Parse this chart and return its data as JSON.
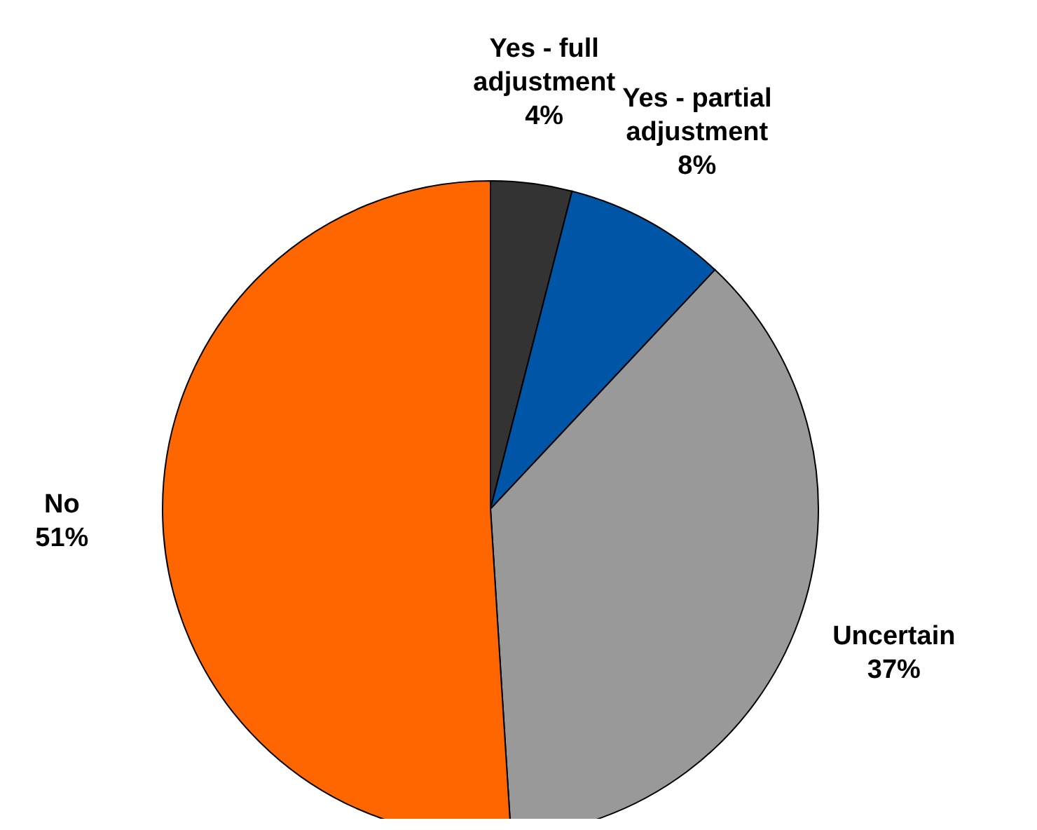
{
  "chart_data": {
    "type": "pie",
    "categories": [
      "Yes - full adjustment",
      "Yes - partial adjustment",
      "Uncertain",
      "No"
    ],
    "values": [
      4,
      8,
      37,
      51
    ],
    "value_labels": [
      "4%",
      "8%",
      "37%",
      "51%"
    ],
    "colors": [
      "#333333",
      "#0056a6",
      "#999999",
      "#ff6600"
    ]
  }
}
